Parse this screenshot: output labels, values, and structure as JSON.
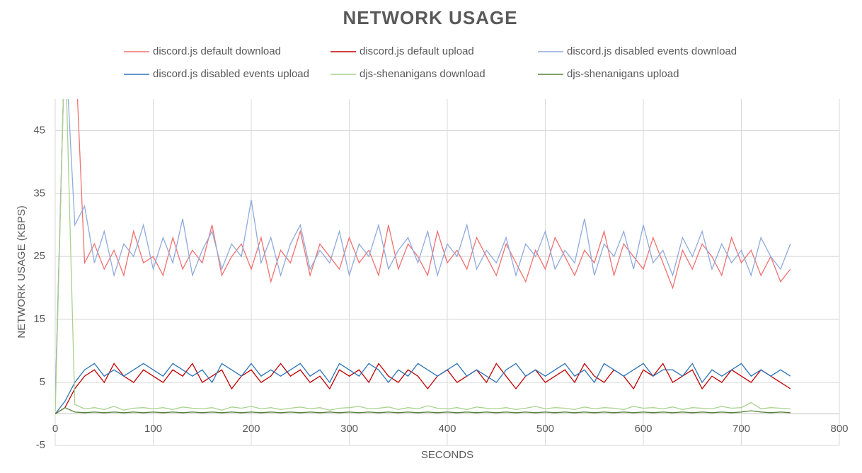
{
  "chart_data": {
    "type": "line",
    "title": "NETWORK USAGE",
    "x_label": "SECONDS",
    "y_label": "NETWORK USAGE (KBPS)",
    "x": [
      0,
      10,
      20,
      30,
      40,
      50,
      60,
      70,
      80,
      90,
      100,
      110,
      120,
      130,
      140,
      150,
      160,
      170,
      180,
      190,
      200,
      210,
      220,
      230,
      240,
      250,
      260,
      270,
      280,
      290,
      300,
      310,
      320,
      330,
      340,
      350,
      360,
      370,
      380,
      390,
      400,
      410,
      420,
      430,
      440,
      450,
      460,
      470,
      480,
      490,
      500,
      510,
      520,
      530,
      540,
      550,
      560,
      570,
      580,
      590,
      600,
      610,
      620,
      630,
      640,
      650,
      660,
      670,
      680,
      690,
      700,
      710,
      720,
      730,
      740,
      750
    ],
    "xlim": [
      0,
      800
    ],
    "xticks": [
      0,
      100,
      200,
      300,
      400,
      500,
      600,
      700,
      800
    ],
    "ylim": [
      -5,
      50
    ],
    "yticks": [
      -5,
      5,
      15,
      25,
      35,
      45
    ],
    "grid": true,
    "series": [
      {
        "name": "discord.js default download",
        "color": "#f07070",
        "values": [
          2,
          60,
          60,
          24,
          27,
          23,
          26,
          22,
          29,
          24,
          25,
          22,
          28,
          23,
          26,
          24,
          30,
          22,
          25,
          27,
          23,
          28,
          21,
          26,
          24,
          29,
          22,
          27,
          25,
          23,
          28,
          24,
          26,
          22,
          30,
          23,
          27,
          25,
          22,
          29,
          24,
          26,
          23,
          28,
          25,
          22,
          27,
          24,
          21,
          26,
          23,
          28,
          25,
          22,
          26,
          24,
          29,
          22,
          27,
          25,
          23,
          28,
          24,
          20,
          26,
          23,
          27,
          25,
          22,
          28,
          24,
          26,
          22,
          25,
          21,
          23
        ]
      },
      {
        "name": "discord.js default upload",
        "color": "#c00000",
        "values": [
          0,
          1,
          4,
          6,
          7,
          5,
          8,
          6,
          5,
          7,
          6,
          5,
          7,
          6,
          8,
          5,
          6,
          7,
          4,
          6,
          7,
          5,
          6,
          8,
          6,
          7,
          5,
          6,
          4,
          7,
          6,
          7,
          5,
          8,
          6,
          5,
          7,
          6,
          4,
          6,
          7,
          5,
          6,
          7,
          5,
          8,
          6,
          4,
          6,
          7,
          5,
          6,
          7,
          5,
          8,
          6,
          5,
          7,
          6,
          4,
          7,
          6,
          8,
          5,
          6,
          7,
          4,
          6,
          5,
          7,
          6,
          5,
          7,
          6,
          5,
          4
        ]
      },
      {
        "name": "discord.js disabled events download",
        "color": "#8faadc",
        "values": [
          2,
          60,
          30,
          33,
          24,
          29,
          22,
          27,
          25,
          30,
          23,
          28,
          24,
          31,
          22,
          26,
          29,
          23,
          27,
          25,
          34,
          24,
          28,
          22,
          27,
          30,
          23,
          26,
          24,
          29,
          22,
          27,
          25,
          30,
          23,
          26,
          28,
          24,
          29,
          22,
          27,
          25,
          30,
          23,
          26,
          24,
          28,
          22,
          27,
          25,
          29,
          23,
          26,
          24,
          31,
          22,
          27,
          25,
          29,
          23,
          30,
          24,
          26,
          22,
          28,
          25,
          29,
          23,
          27,
          24,
          26,
          22,
          28,
          25,
          23,
          27
        ]
      },
      {
        "name": "discord.js disabled events upload",
        "color": "#2e75b6",
        "values": [
          0,
          2,
          5,
          7,
          8,
          6,
          7,
          6,
          7,
          8,
          7,
          6,
          8,
          7,
          6,
          7,
          5,
          8,
          7,
          6,
          8,
          6,
          7,
          6,
          7,
          8,
          6,
          7,
          5,
          8,
          7,
          6,
          8,
          7,
          5,
          7,
          6,
          8,
          7,
          6,
          7,
          8,
          6,
          7,
          6,
          5,
          7,
          8,
          6,
          7,
          6,
          7,
          8,
          6,
          7,
          5,
          8,
          7,
          6,
          7,
          8,
          6,
          7,
          7,
          6,
          8,
          5,
          7,
          6,
          7,
          8,
          6,
          7,
          6,
          7,
          6
        ]
      },
      {
        "name": "djs-shenanigans download",
        "color": "#a9d18e",
        "values": [
          0,
          60,
          1.5,
          0.8,
          1,
          0.7,
          1.2,
          0.6,
          0.9,
          1,
          0.8,
          1,
          0.7,
          1.1,
          0.9,
          0.8,
          1,
          0.6,
          1.1,
          0.9,
          1.2,
          0.8,
          1,
          0.7,
          0.9,
          1.1,
          0.8,
          1,
          0.6,
          0.9,
          1,
          1.2,
          0.8,
          0.9,
          1.1,
          0.7,
          1,
          0.8,
          1.3,
          0.9,
          0.8,
          1,
          0.7,
          1.1,
          0.9,
          0.8,
          1,
          0.7,
          0.9,
          1.2,
          0.8,
          1,
          0.9,
          0.7,
          1.1,
          0.8,
          1,
          0.9,
          0.7,
          1.2,
          0.9,
          1,
          0.8,
          1.1,
          0.7,
          1,
          0.9,
          0.8,
          1.2,
          0.9,
          1,
          1.8,
          0.8,
          1,
          0.9,
          0.8
        ]
      },
      {
        "name": "djs-shenanigans upload",
        "color": "#548235",
        "values": [
          0,
          1,
          0.3,
          0.2,
          0.3,
          0.2,
          0.3,
          0.2,
          0.3,
          0.2,
          0.3,
          0.2,
          0.3,
          0.2,
          0.3,
          0.2,
          0.3,
          0.2,
          0.3,
          0.2,
          0.3,
          0.2,
          0.3,
          0.2,
          0.3,
          0.2,
          0.3,
          0.2,
          0.3,
          0.2,
          0.3,
          0.2,
          0.3,
          0.2,
          0.3,
          0.2,
          0.3,
          0.2,
          0.3,
          0.2,
          0.3,
          0.2,
          0.3,
          0.2,
          0.3,
          0.2,
          0.3,
          0.2,
          0.3,
          0.2,
          0.3,
          0.2,
          0.3,
          0.2,
          0.3,
          0.2,
          0.3,
          0.2,
          0.3,
          0.2,
          0.3,
          0.2,
          0.3,
          0.2,
          0.3,
          0.2,
          0.3,
          0.2,
          0.3,
          0.2,
          0.3,
          0.5,
          0.3,
          0.2,
          0.3,
          0.2
        ]
      }
    ]
  }
}
